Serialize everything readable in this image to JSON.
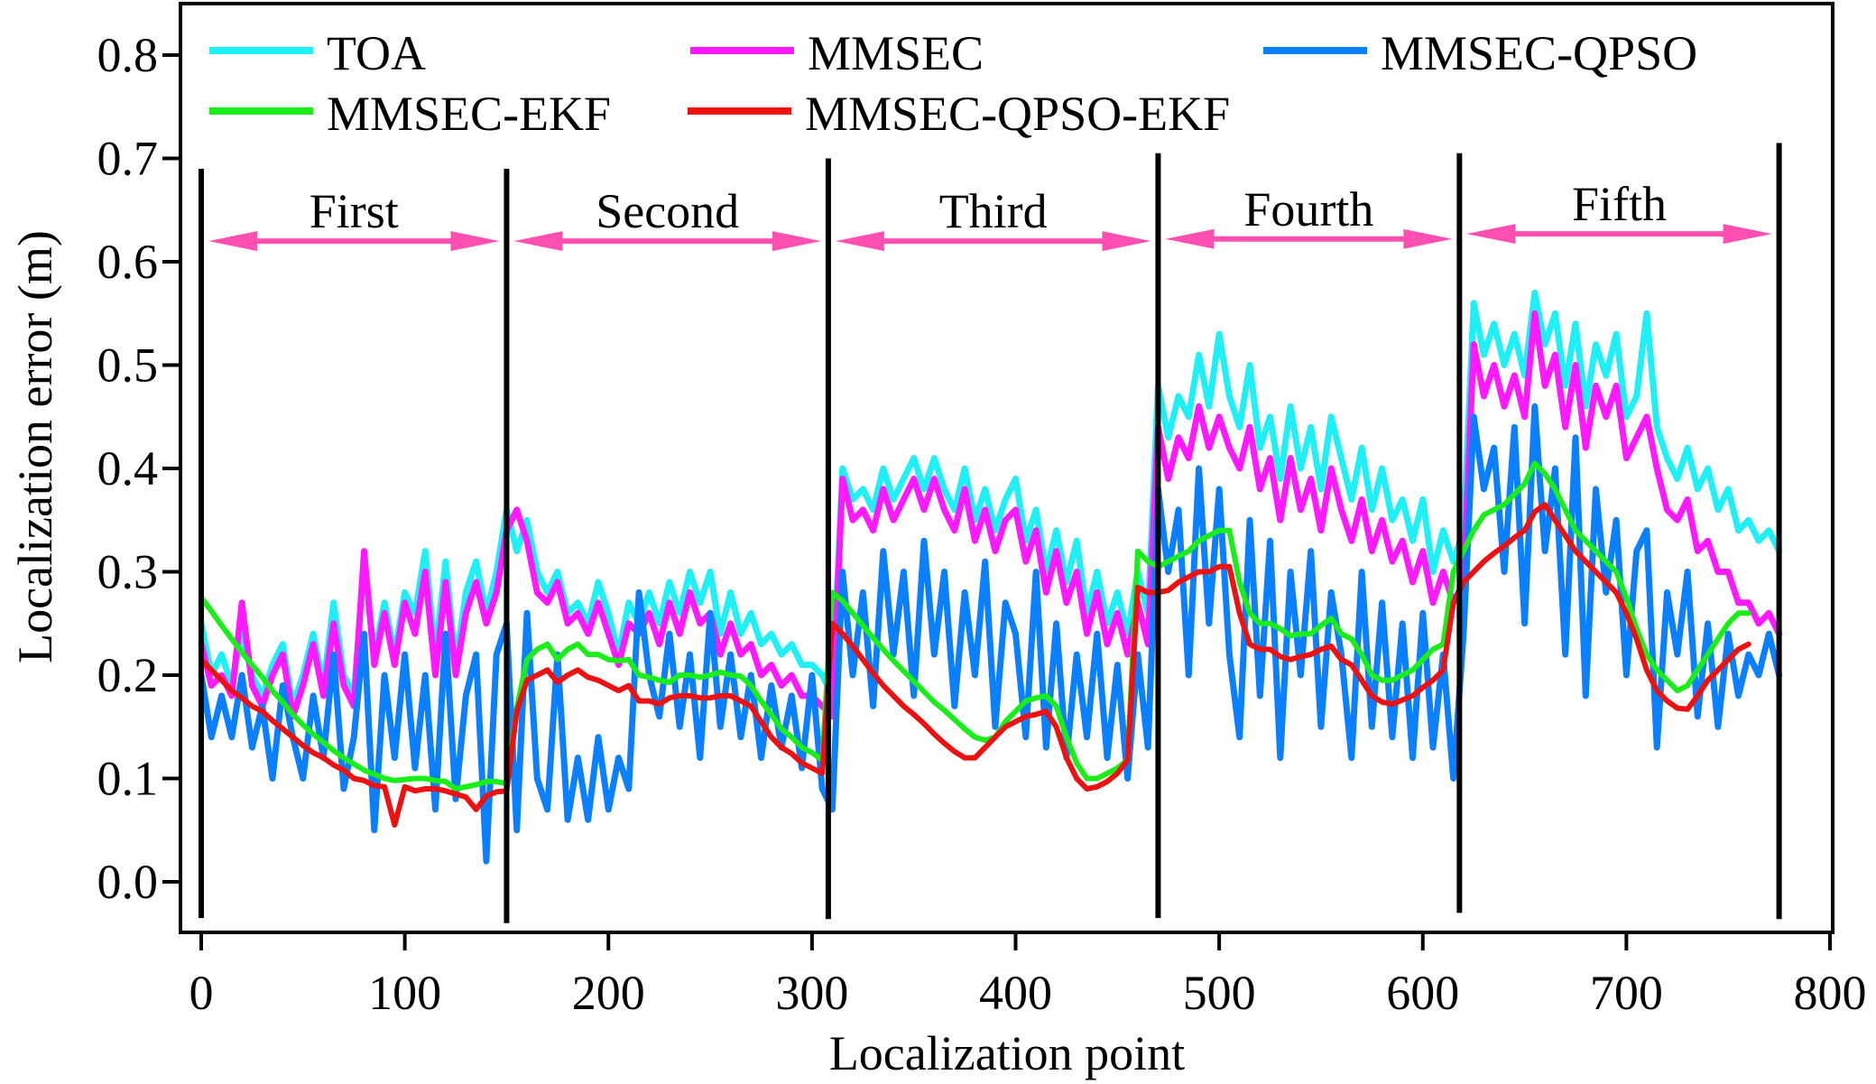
{
  "chart_data": {
    "type": "line",
    "title": "",
    "xlabel": "Localization point",
    "ylabel": "Localization error (m)",
    "xlim": [
      -5,
      800
    ],
    "ylim": [
      -0.04,
      0.84
    ],
    "xticks": [
      0,
      100,
      200,
      300,
      400,
      500,
      600,
      700,
      800
    ],
    "xtick_labels": [
      "0",
      "100",
      "200",
      "300",
      "400",
      "500",
      "600",
      "700",
      "800"
    ],
    "yticks": [
      0.0,
      0.1,
      0.2,
      0.3,
      0.4,
      0.5,
      0.6,
      0.7,
      0.8
    ],
    "ytick_labels": [
      "0.0",
      "0.1",
      "0.2",
      "0.3",
      "0.4",
      "0.5",
      "0.6",
      "0.7",
      "0.8"
    ],
    "grid": false,
    "legend_position": "top",
    "sections": [
      {
        "label": "First",
        "start": 0,
        "end": 150,
        "arrow_y": 0.62
      },
      {
        "label": "Second",
        "start": 150,
        "end": 308,
        "arrow_y": 0.62
      },
      {
        "label": "Third",
        "start": 308,
        "end": 470,
        "arrow_y": 0.62
      },
      {
        "label": "Fourth",
        "start": 470,
        "end": 618,
        "arrow_y": 0.622
      },
      {
        "label": "Fifth",
        "start": 618,
        "end": 775,
        "arrow_y": 0.627
      }
    ],
    "section_color": "#ff4fb0",
    "x_step": 5,
    "x_start": 0,
    "series": [
      {
        "name": "TOA",
        "color": "#1ef0f5",
        "values": [
          0.25,
          0.2,
          0.22,
          0.19,
          0.24,
          0.2,
          0.18,
          0.21,
          0.23,
          0.17,
          0.2,
          0.24,
          0.19,
          0.27,
          0.2,
          0.18,
          0.31,
          0.22,
          0.27,
          0.22,
          0.28,
          0.26,
          0.32,
          0.22,
          0.31,
          0.21,
          0.28,
          0.31,
          0.26,
          0.3,
          0.36,
          0.32,
          0.35,
          0.3,
          0.28,
          0.3,
          0.26,
          0.27,
          0.25,
          0.29,
          0.26,
          0.22,
          0.27,
          0.25,
          0.28,
          0.25,
          0.29,
          0.26,
          0.3,
          0.27,
          0.3,
          0.24,
          0.28,
          0.24,
          0.26,
          0.23,
          0.24,
          0.22,
          0.23,
          0.21,
          0.21,
          0.2,
          0.18,
          0.4,
          0.37,
          0.38,
          0.36,
          0.4,
          0.37,
          0.39,
          0.41,
          0.38,
          0.41,
          0.38,
          0.36,
          0.4,
          0.35,
          0.38,
          0.34,
          0.37,
          0.39,
          0.33,
          0.36,
          0.3,
          0.34,
          0.29,
          0.33,
          0.26,
          0.3,
          0.25,
          0.28,
          0.24,
          0.3,
          0.26,
          0.48,
          0.43,
          0.47,
          0.45,
          0.51,
          0.46,
          0.53,
          0.47,
          0.44,
          0.5,
          0.42,
          0.45,
          0.39,
          0.46,
          0.4,
          0.44,
          0.38,
          0.45,
          0.41,
          0.37,
          0.42,
          0.36,
          0.4,
          0.35,
          0.37,
          0.33,
          0.37,
          0.3,
          0.34,
          0.31,
          0.34,
          0.56,
          0.51,
          0.54,
          0.5,
          0.53,
          0.49,
          0.57,
          0.52,
          0.55,
          0.48,
          0.54,
          0.46,
          0.52,
          0.49,
          0.53,
          0.45,
          0.47,
          0.55,
          0.44,
          0.41,
          0.39,
          0.42,
          0.38,
          0.4,
          0.36,
          0.38,
          0.34,
          0.35,
          0.33,
          0.34,
          0.32
        ]
      },
      {
        "name": "MMSEC",
        "color": "#ff19ff",
        "values": [
          0.23,
          0.19,
          0.2,
          0.18,
          0.27,
          0.19,
          0.17,
          0.2,
          0.22,
          0.16,
          0.19,
          0.23,
          0.18,
          0.25,
          0.19,
          0.17,
          0.32,
          0.21,
          0.26,
          0.21,
          0.27,
          0.24,
          0.3,
          0.2,
          0.29,
          0.2,
          0.26,
          0.29,
          0.25,
          0.28,
          0.34,
          0.36,
          0.33,
          0.28,
          0.27,
          0.29,
          0.25,
          0.26,
          0.24,
          0.27,
          0.24,
          0.21,
          0.25,
          0.24,
          0.26,
          0.23,
          0.27,
          0.24,
          0.28,
          0.25,
          0.26,
          0.22,
          0.25,
          0.22,
          0.23,
          0.2,
          0.21,
          0.19,
          0.2,
          0.18,
          0.18,
          0.17,
          0.16,
          0.39,
          0.35,
          0.36,
          0.34,
          0.38,
          0.35,
          0.37,
          0.39,
          0.36,
          0.39,
          0.36,
          0.34,
          0.38,
          0.33,
          0.36,
          0.32,
          0.35,
          0.36,
          0.31,
          0.34,
          0.28,
          0.32,
          0.27,
          0.3,
          0.24,
          0.28,
          0.23,
          0.26,
          0.22,
          0.27,
          0.23,
          0.44,
          0.39,
          0.43,
          0.41,
          0.46,
          0.42,
          0.45,
          0.42,
          0.4,
          0.44,
          0.38,
          0.41,
          0.35,
          0.41,
          0.36,
          0.39,
          0.34,
          0.4,
          0.36,
          0.33,
          0.37,
          0.32,
          0.35,
          0.31,
          0.33,
          0.29,
          0.32,
          0.27,
          0.3,
          0.27,
          0.29,
          0.52,
          0.47,
          0.5,
          0.46,
          0.49,
          0.45,
          0.55,
          0.48,
          0.51,
          0.44,
          0.5,
          0.42,
          0.48,
          0.45,
          0.48,
          0.41,
          0.43,
          0.45,
          0.4,
          0.36,
          0.35,
          0.37,
          0.32,
          0.33,
          0.3,
          0.3,
          0.27,
          0.27,
          0.25,
          0.26,
          0.24
        ]
      },
      {
        "name": "MMSEC-QPSO",
        "color": "#0a80ff",
        "values": [
          0.2,
          0.14,
          0.18,
          0.14,
          0.2,
          0.13,
          0.17,
          0.1,
          0.19,
          0.14,
          0.1,
          0.18,
          0.12,
          0.22,
          0.09,
          0.14,
          0.24,
          0.05,
          0.2,
          0.12,
          0.22,
          0.11,
          0.2,
          0.07,
          0.24,
          0.08,
          0.18,
          0.22,
          0.02,
          0.22,
          0.25,
          0.05,
          0.26,
          0.1,
          0.07,
          0.22,
          0.06,
          0.12,
          0.06,
          0.14,
          0.07,
          0.12,
          0.09,
          0.28,
          0.2,
          0.16,
          0.24,
          0.15,
          0.22,
          0.12,
          0.26,
          0.15,
          0.22,
          0.14,
          0.2,
          0.12,
          0.19,
          0.13,
          0.18,
          0.11,
          0.2,
          0.09,
          0.07,
          0.3,
          0.2,
          0.28,
          0.17,
          0.32,
          0.22,
          0.3,
          0.18,
          0.33,
          0.22,
          0.3,
          0.17,
          0.28,
          0.2,
          0.31,
          0.15,
          0.27,
          0.24,
          0.14,
          0.3,
          0.13,
          0.25,
          0.12,
          0.22,
          0.14,
          0.24,
          0.12,
          0.21,
          0.1,
          0.22,
          0.13,
          0.38,
          0.3,
          0.36,
          0.2,
          0.4,
          0.25,
          0.38,
          0.22,
          0.14,
          0.35,
          0.18,
          0.33,
          0.12,
          0.3,
          0.2,
          0.32,
          0.15,
          0.28,
          0.22,
          0.12,
          0.3,
          0.15,
          0.27,
          0.14,
          0.25,
          0.12,
          0.26,
          0.13,
          0.22,
          0.1,
          0.24,
          0.45,
          0.38,
          0.42,
          0.3,
          0.44,
          0.25,
          0.46,
          0.32,
          0.4,
          0.22,
          0.43,
          0.18,
          0.38,
          0.28,
          0.35,
          0.2,
          0.32,
          0.34,
          0.13,
          0.28,
          0.22,
          0.3,
          0.16,
          0.25,
          0.15,
          0.24,
          0.18,
          0.22,
          0.2,
          0.24,
          0.2
        ]
      },
      {
        "name": "MMSEC-EKF",
        "color": "#19ee19",
        "values": [
          0.275,
          0.262,
          0.248,
          0.235,
          0.222,
          0.21,
          0.198,
          0.185,
          0.174,
          0.162,
          0.152,
          0.143,
          0.135,
          0.127,
          0.12,
          0.114,
          0.108,
          0.104,
          0.1,
          0.098,
          0.099,
          0.1,
          0.1,
          0.098,
          0.097,
          0.09,
          0.092,
          0.094,
          0.097,
          0.097,
          0.095,
          0.168,
          0.215,
          0.225,
          0.23,
          0.215,
          0.225,
          0.23,
          0.22,
          0.22,
          0.215,
          0.214,
          0.215,
          0.2,
          0.198,
          0.195,
          0.193,
          0.2,
          0.2,
          0.198,
          0.2,
          0.203,
          0.2,
          0.199,
          0.19,
          0.175,
          0.162,
          0.148,
          0.14,
          0.13,
          0.125,
          0.118,
          0.28,
          0.272,
          0.26,
          0.248,
          0.236,
          0.225,
          0.214,
          0.204,
          0.194,
          0.184,
          0.174,
          0.166,
          0.157,
          0.148,
          0.14,
          0.137,
          0.14,
          0.155,
          0.165,
          0.175,
          0.178,
          0.18,
          0.17,
          0.14,
          0.115,
          0.1,
          0.1,
          0.105,
          0.11,
          0.118,
          0.32,
          0.31,
          0.305,
          0.31,
          0.315,
          0.32,
          0.33,
          0.335,
          0.34,
          0.34,
          0.29,
          0.26,
          0.25,
          0.25,
          0.245,
          0.238,
          0.24,
          0.24,
          0.248,
          0.255,
          0.24,
          0.235,
          0.22,
          0.2,
          0.195,
          0.195,
          0.2,
          0.205,
          0.215,
          0.225,
          0.23,
          0.3,
          0.32,
          0.34,
          0.355,
          0.36,
          0.365,
          0.375,
          0.385,
          0.405,
          0.395,
          0.38,
          0.36,
          0.34,
          0.33,
          0.32,
          0.31,
          0.3,
          0.275,
          0.245,
          0.22,
          0.205,
          0.195,
          0.185,
          0.19,
          0.205,
          0.22,
          0.235,
          0.25,
          0.26,
          0.26
        ]
      },
      {
        "name": "MMSEC-QPSO-EKF",
        "color": "#ee1111",
        "values": [
          0.215,
          0.205,
          0.195,
          0.185,
          0.178,
          0.17,
          0.165,
          0.156,
          0.148,
          0.14,
          0.132,
          0.125,
          0.12,
          0.113,
          0.108,
          0.1,
          0.098,
          0.093,
          0.092,
          0.055,
          0.092,
          0.088,
          0.09,
          0.09,
          0.088,
          0.085,
          0.082,
          0.07,
          0.083,
          0.087,
          0.088,
          0.165,
          0.195,
          0.2,
          0.205,
          0.193,
          0.2,
          0.205,
          0.198,
          0.195,
          0.19,
          0.185,
          0.19,
          0.175,
          0.175,
          0.172,
          0.178,
          0.18,
          0.18,
          0.178,
          0.178,
          0.18,
          0.18,
          0.175,
          0.17,
          0.155,
          0.14,
          0.13,
          0.124,
          0.115,
          0.11,
          0.105,
          0.25,
          0.24,
          0.228,
          0.215,
          0.202,
          0.19,
          0.18,
          0.17,
          0.162,
          0.153,
          0.143,
          0.134,
          0.126,
          0.12,
          0.12,
          0.13,
          0.14,
          0.15,
          0.155,
          0.16,
          0.162,
          0.165,
          0.15,
          0.12,
          0.1,
          0.09,
          0.092,
          0.097,
          0.105,
          0.118,
          0.285,
          0.28,
          0.28,
          0.282,
          0.29,
          0.295,
          0.3,
          0.3,
          0.305,
          0.305,
          0.26,
          0.23,
          0.225,
          0.225,
          0.218,
          0.215,
          0.218,
          0.22,
          0.225,
          0.228,
          0.215,
          0.21,
          0.195,
          0.18,
          0.174,
          0.172,
          0.176,
          0.18,
          0.188,
          0.195,
          0.205,
          0.27,
          0.29,
          0.3,
          0.31,
          0.318,
          0.325,
          0.333,
          0.34,
          0.358,
          0.365,
          0.35,
          0.335,
          0.32,
          0.31,
          0.3,
          0.29,
          0.28,
          0.26,
          0.235,
          0.205,
          0.185,
          0.175,
          0.168,
          0.167,
          0.18,
          0.195,
          0.205,
          0.215,
          0.225,
          0.23
        ]
      }
    ]
  }
}
